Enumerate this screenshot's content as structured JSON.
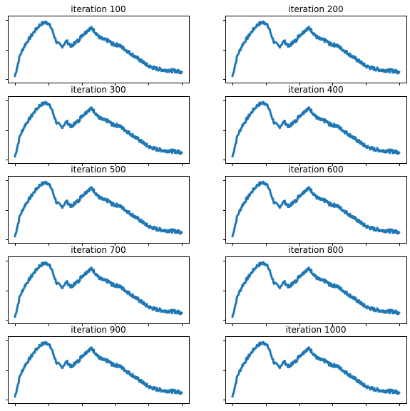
{
  "colors": {
    "line": "#1f77b4",
    "axes": "#000000",
    "background": "#ffffff"
  },
  "chart_data": {
    "type": "line",
    "layout": "5x2 grid of small multiples",
    "tick_labels_shown": false,
    "x_ticks": 6,
    "y_ticks": 3,
    "shared_series": {
      "x": [
        0,
        0.03,
        0.06,
        0.09,
        0.12,
        0.15,
        0.18,
        0.2,
        0.22,
        0.25,
        0.28,
        0.31,
        0.34,
        0.36,
        0.38,
        0.4,
        0.42,
        0.44,
        0.46,
        0.48,
        0.5,
        0.52,
        0.54,
        0.56,
        0.58,
        0.6,
        0.62,
        0.64,
        0.66,
        0.68,
        0.7,
        0.72,
        0.74,
        0.76,
        0.78,
        0.8,
        0.82,
        0.84,
        0.86,
        0.88,
        0.9,
        0.92,
        0.94,
        0.96,
        0.98,
        1.0
      ],
      "y": [
        0.05,
        0.4,
        0.58,
        0.7,
        0.82,
        0.92,
        0.96,
        0.95,
        0.85,
        0.62,
        0.55,
        0.64,
        0.55,
        0.62,
        0.65,
        0.74,
        0.78,
        0.84,
        0.86,
        0.8,
        0.72,
        0.68,
        0.66,
        0.65,
        0.6,
        0.58,
        0.58,
        0.54,
        0.5,
        0.46,
        0.42,
        0.38,
        0.34,
        0.3,
        0.26,
        0.22,
        0.2,
        0.18,
        0.17,
        0.16,
        0.15,
        0.15,
        0.14,
        0.14,
        0.13,
        0.12
      ],
      "noise": 0.03
    },
    "panels": [
      {
        "title": "iteration 100"
      },
      {
        "title": "iteration 200"
      },
      {
        "title": "iteration 300"
      },
      {
        "title": "iteration 400"
      },
      {
        "title": "iteration 500"
      },
      {
        "title": "iteration 600"
      },
      {
        "title": "iteration 700"
      },
      {
        "title": "iteration 800"
      },
      {
        "title": "iteration 900"
      },
      {
        "title": "iteration 1000"
      }
    ]
  }
}
